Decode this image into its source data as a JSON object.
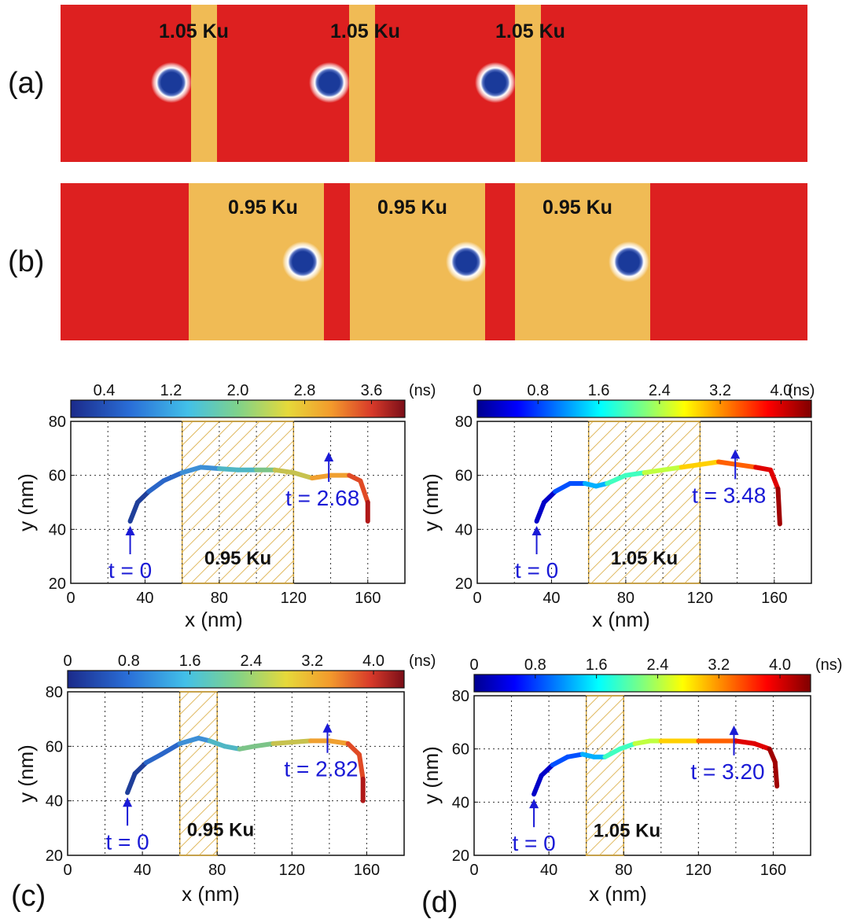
{
  "panel_labels": {
    "a": "(a)",
    "b": "(b)",
    "c": "(c)",
    "d": "(d)"
  },
  "colors": {
    "track_red": "#dd2020",
    "region_gold": "#f0bb55",
    "skyrmion_core": "#1a3a9a",
    "arrow_blue": "#1a1ad6"
  },
  "strip_a": {
    "base_color": "#dd2020",
    "label": "1.05 Ku",
    "labels": [
      "1.05 Ku",
      "1.05 Ku",
      "1.05 Ku"
    ]
  },
  "strip_b": {
    "base_color": "#dd2020",
    "label": "0.95 Ku",
    "labels": [
      "0.95 Ku",
      "0.95 Ku",
      "0.95 Ku"
    ]
  },
  "chart_data": [
    {
      "type": "line",
      "id": "top-left",
      "xlabel": "x (nm)",
      "ylabel": "y (nm)",
      "xlim": [
        0,
        180
      ],
      "ylim": [
        20,
        80
      ],
      "xticks": [
        "0",
        "40",
        "80",
        "120",
        "160"
      ],
      "yticks": [
        "20",
        "40",
        "60",
        "80"
      ],
      "colorbar": {
        "range": [
          0,
          4.0
        ],
        "ticks": [
          "0.4",
          "1.2",
          "2.0",
          "2.8",
          "3.6"
        ],
        "unit": "(ns)",
        "colormap": "parula"
      },
      "region": {
        "x": [
          60,
          120
        ],
        "label": "0.95 Ku"
      },
      "annotations": [
        {
          "text": "t = 0",
          "x": 32,
          "y": 41
        },
        {
          "text": "t = 2.68",
          "x": 139,
          "y": 57
        }
      ],
      "series": [
        {
          "x": [
            32,
            36,
            42,
            50,
            60,
            70,
            80,
            90,
            100,
            110,
            120,
            130,
            140,
            150,
            156,
            160,
            160
          ],
          "y": [
            43,
            50,
            54,
            58,
            61,
            63,
            62.5,
            62,
            62,
            62,
            61,
            59,
            60,
            60,
            58,
            50,
            43
          ]
        }
      ]
    },
    {
      "type": "line",
      "id": "top-right",
      "xlabel": "x (nm)",
      "ylabel": "y (nm)",
      "xlim": [
        0,
        180
      ],
      "ylim": [
        20,
        80
      ],
      "xticks": [
        "0",
        "40",
        "80",
        "120",
        "160"
      ],
      "yticks": [
        "20",
        "40",
        "60",
        "80"
      ],
      "colorbar": {
        "range": [
          0,
          4.4
        ],
        "ticks": [
          "0",
          "0.8",
          "1.6",
          "2.4",
          "3.2",
          "4.0"
        ],
        "unit": "(ns)",
        "colormap": "jet"
      },
      "region": {
        "x": [
          60,
          120
        ],
        "label": "1.05 Ku"
      },
      "annotations": [
        {
          "text": "t = 0",
          "x": 32,
          "y": 41
        },
        {
          "text": "t = 3.48",
          "x": 139,
          "y": 58
        }
      ],
      "series": [
        {
          "x": [
            32,
            36,
            42,
            50,
            58,
            64,
            70,
            80,
            90,
            100,
            110,
            120,
            130,
            140,
            150,
            158,
            162,
            163
          ],
          "y": [
            43,
            50,
            54,
            57,
            57,
            56,
            57,
            60,
            61,
            62,
            63,
            64,
            65,
            64,
            63,
            62,
            55,
            42
          ]
        }
      ]
    },
    {
      "type": "line",
      "id": "panel-c",
      "xlabel": "x (nm)",
      "ylabel": "y (nm)",
      "xlim": [
        0,
        180
      ],
      "ylim": [
        20,
        80
      ],
      "xticks": [
        "0",
        "40",
        "80",
        "120",
        "160"
      ],
      "yticks": [
        "20",
        "40",
        "60",
        "80"
      ],
      "colorbar": {
        "range": [
          0,
          4.4
        ],
        "ticks": [
          "0",
          "0.8",
          "1.6",
          "2.4",
          "3.2",
          "4.0"
        ],
        "unit": "(ns)",
        "colormap": "parula"
      },
      "region": {
        "x": [
          60,
          80
        ],
        "label": "0.95 Ku"
      },
      "annotations": [
        {
          "text": "t = 0",
          "x": 32,
          "y": 41
        },
        {
          "text": "t = 2.82",
          "x": 139,
          "y": 57
        }
      ],
      "series": [
        {
          "x": [
            32,
            36,
            42,
            50,
            60,
            70,
            76,
            84,
            92,
            100,
            110,
            120,
            130,
            140,
            150,
            156,
            158,
            158
          ],
          "y": [
            43,
            50,
            54,
            57,
            61,
            63,
            62,
            60,
            59,
            60,
            61,
            61.5,
            62,
            62,
            61,
            57,
            48,
            40
          ]
        }
      ]
    },
    {
      "type": "line",
      "id": "panel-d",
      "xlabel": "x (nm)",
      "ylabel": "y (nm)",
      "xlim": [
        0,
        180
      ],
      "ylim": [
        20,
        80
      ],
      "xticks": [
        "0",
        "40",
        "80",
        "120",
        "160"
      ],
      "yticks": [
        "20",
        "40",
        "60",
        "80"
      ],
      "colorbar": {
        "range": [
          0,
          4.4
        ],
        "ticks": [
          "0",
          "0.8",
          "1.6",
          "2.4",
          "3.2",
          "4.0"
        ],
        "unit": "(ns)",
        "colormap": "jet"
      },
      "region": {
        "x": [
          60,
          80
        ],
        "label": "1.05 Ku"
      },
      "annotations": [
        {
          "text": "t = 0",
          "x": 32,
          "y": 41
        },
        {
          "text": "t = 3.20",
          "x": 139,
          "y": 57
        }
      ],
      "series": [
        {
          "x": [
            32,
            36,
            42,
            50,
            58,
            64,
            70,
            78,
            86,
            94,
            100,
            110,
            120,
            130,
            140,
            150,
            158,
            161,
            162
          ],
          "y": [
            43,
            50,
            54,
            57,
            58,
            57,
            57,
            60,
            62,
            63,
            63,
            63,
            63,
            63,
            63,
            62,
            60,
            55,
            46
          ]
        }
      ]
    }
  ]
}
